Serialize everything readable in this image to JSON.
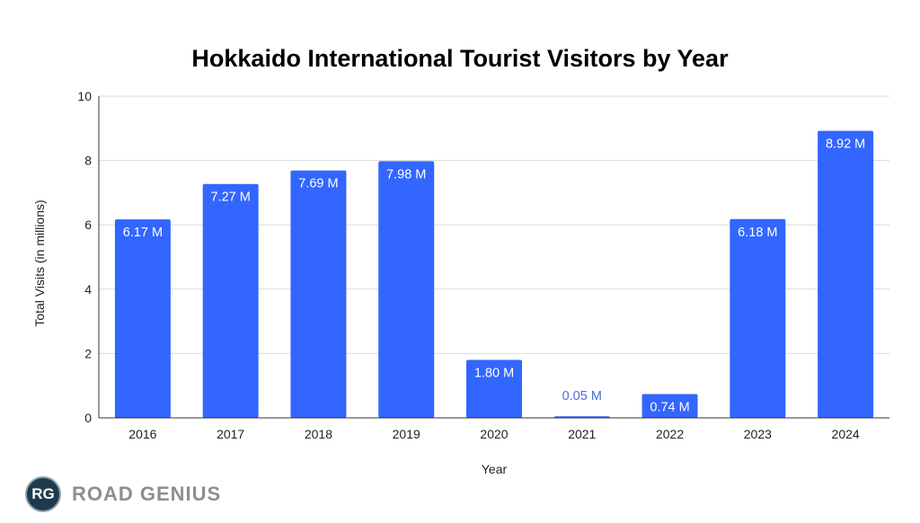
{
  "chart_data": {
    "type": "bar",
    "title": "Hokkaido International Tourist Visitors by Year",
    "xlabel": "Year",
    "ylabel": "Total Visits (in millions)",
    "categories": [
      "2016",
      "2017",
      "2018",
      "2019",
      "2020",
      "2021",
      "2022",
      "2023",
      "2024"
    ],
    "values": [
      6.17,
      7.27,
      7.69,
      7.98,
      1.8,
      0.05,
      0.74,
      6.18,
      8.92
    ],
    "data_labels": [
      "6.17 M",
      "7.27 M",
      "7.69 M",
      "7.98 M",
      "1.80 M",
      "0.05 M",
      "0.74 M",
      "6.18 M",
      "8.92 M"
    ],
    "ylim": [
      0,
      10
    ],
    "yticks": [
      "0",
      "2",
      "4",
      "6",
      "8",
      "10"
    ],
    "grid": true,
    "bar_color": "#3366ff"
  },
  "logo": {
    "initials": "RG",
    "name": "ROAD GENIUS"
  }
}
